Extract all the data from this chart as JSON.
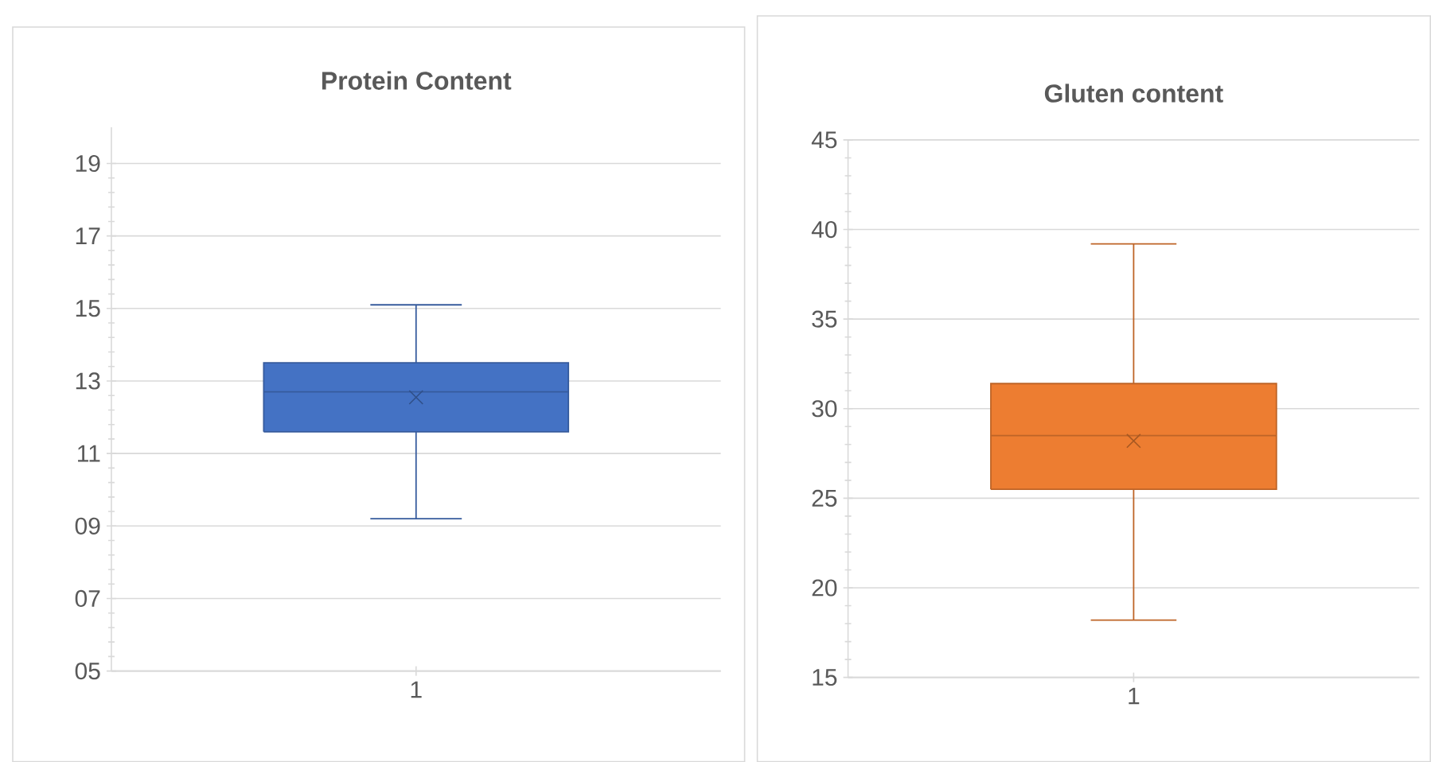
{
  "chart_data": [
    {
      "type": "box",
      "title": "Protein Content",
      "categories": [
        "1"
      ],
      "series": [
        {
          "color": "#4472c4",
          "boxes": [
            {
              "low": 9.2,
              "q1": 11.6,
              "median": 12.7,
              "q3": 13.5,
              "high": 15.1,
              "mean": 12.55
            }
          ]
        }
      ],
      "ylim": [
        5,
        20
      ],
      "yticks": [
        {
          "value": 5,
          "label": "05"
        },
        {
          "value": 7,
          "label": "07"
        },
        {
          "value": 9,
          "label": "09"
        },
        11,
        13,
        15,
        17,
        19
      ],
      "grid": "y"
    },
    {
      "type": "box",
      "title": "Gluten content",
      "categories": [
        "1"
      ],
      "series": [
        {
          "color": "#ed7d31",
          "boxes": [
            {
              "low": 18.2,
              "q1": 25.5,
              "median": 28.5,
              "q3": 31.4,
              "high": 39.2,
              "mean": 28.2
            }
          ]
        }
      ],
      "ylim": [
        15,
        45
      ],
      "yticks": [
        15,
        20,
        25,
        30,
        35,
        40,
        45
      ],
      "grid": "y"
    }
  ]
}
